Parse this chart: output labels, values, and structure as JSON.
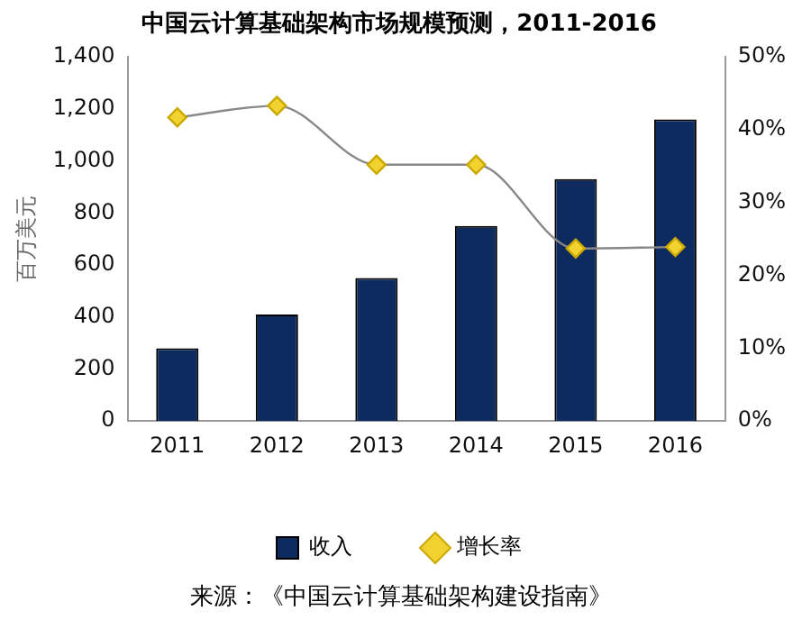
{
  "chart_data": {
    "type": "bar",
    "title": "中国云计算基础架构市场规模预测，2011-2016",
    "ylabel": "百万美元",
    "categories": [
      "2011",
      "2012",
      "2013",
      "2014",
      "2015",
      "2016"
    ],
    "series": [
      {
        "name": "收入",
        "color": "#0d2b5e",
        "values": [
          280,
          410,
          550,
          750,
          930,
          1160
        ]
      },
      {
        "name": "增长率",
        "type": "line",
        "axis": "y2",
        "color": "#f2d22e",
        "marker": "diamond",
        "values": [
          41.7,
          43.3,
          35.2,
          35.2,
          23.7,
          23.9
        ]
      }
    ],
    "ylim": [
      0,
      1400
    ],
    "yticks": [
      0,
      200,
      400,
      600,
      800,
      {
        "value": 1000,
        "label": "1,000"
      },
      {
        "value": 1200,
        "label": "1,200"
      },
      {
        "value": 1400,
        "label": "1,400"
      }
    ],
    "y2lim": [
      0,
      50
    ],
    "y2ticks": [
      {
        "value": 0,
        "label": "0%"
      },
      {
        "value": 10,
        "label": "10%"
      },
      {
        "value": 20,
        "label": "20%"
      },
      {
        "value": 30,
        "label": "30%"
      },
      {
        "value": 40,
        "label": "40%"
      },
      {
        "value": 50,
        "label": "50%"
      }
    ],
    "legend": "bottom",
    "grid": false,
    "annotations": [
      "来源：《中国云计算基础架构建设指南》"
    ]
  }
}
